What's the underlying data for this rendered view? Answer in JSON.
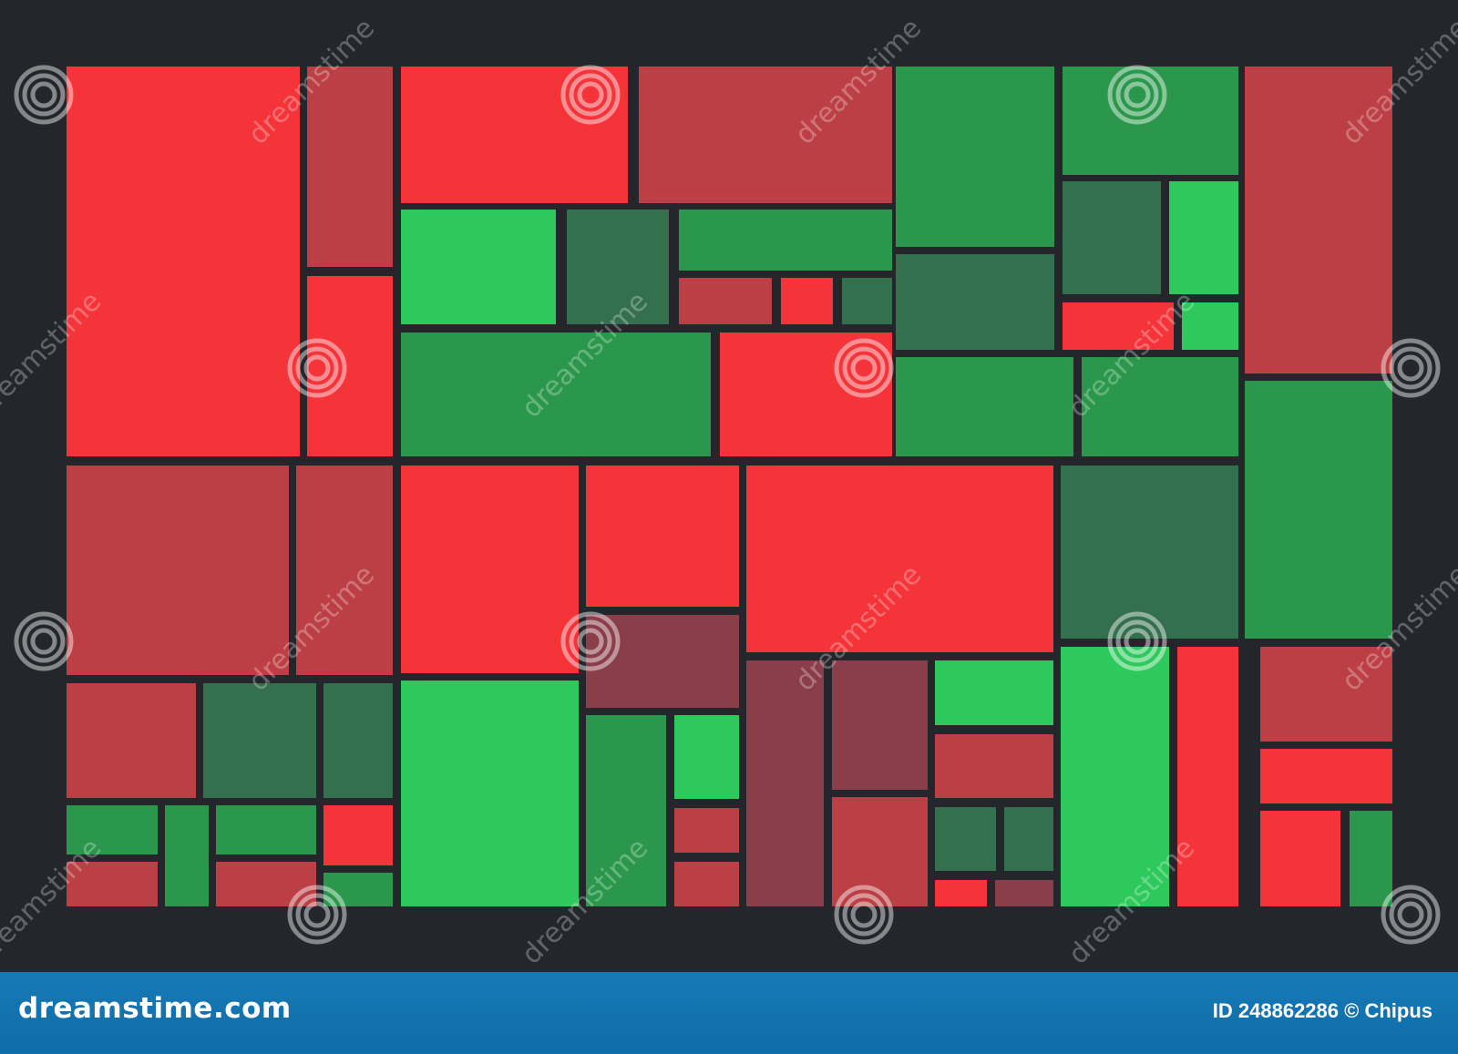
{
  "chart_data": {
    "type": "heatmap",
    "title": "",
    "legend": "none",
    "color_scale": {
      "strong_down": "#f5343a",
      "down": "#bb3f44",
      "slight_down": "#8a3e4a",
      "slight_up": "#346f4e",
      "up": "#2b974c",
      "strong_up": "#2ec95c"
    }
  },
  "colors": {
    "background": "#24262c",
    "footer": "#1177b2"
  },
  "watermark": {
    "text": "dreamstime"
  },
  "footer": {
    "logo": "dreamstime.com",
    "credit": "ID 248862286 © Chipus"
  }
}
